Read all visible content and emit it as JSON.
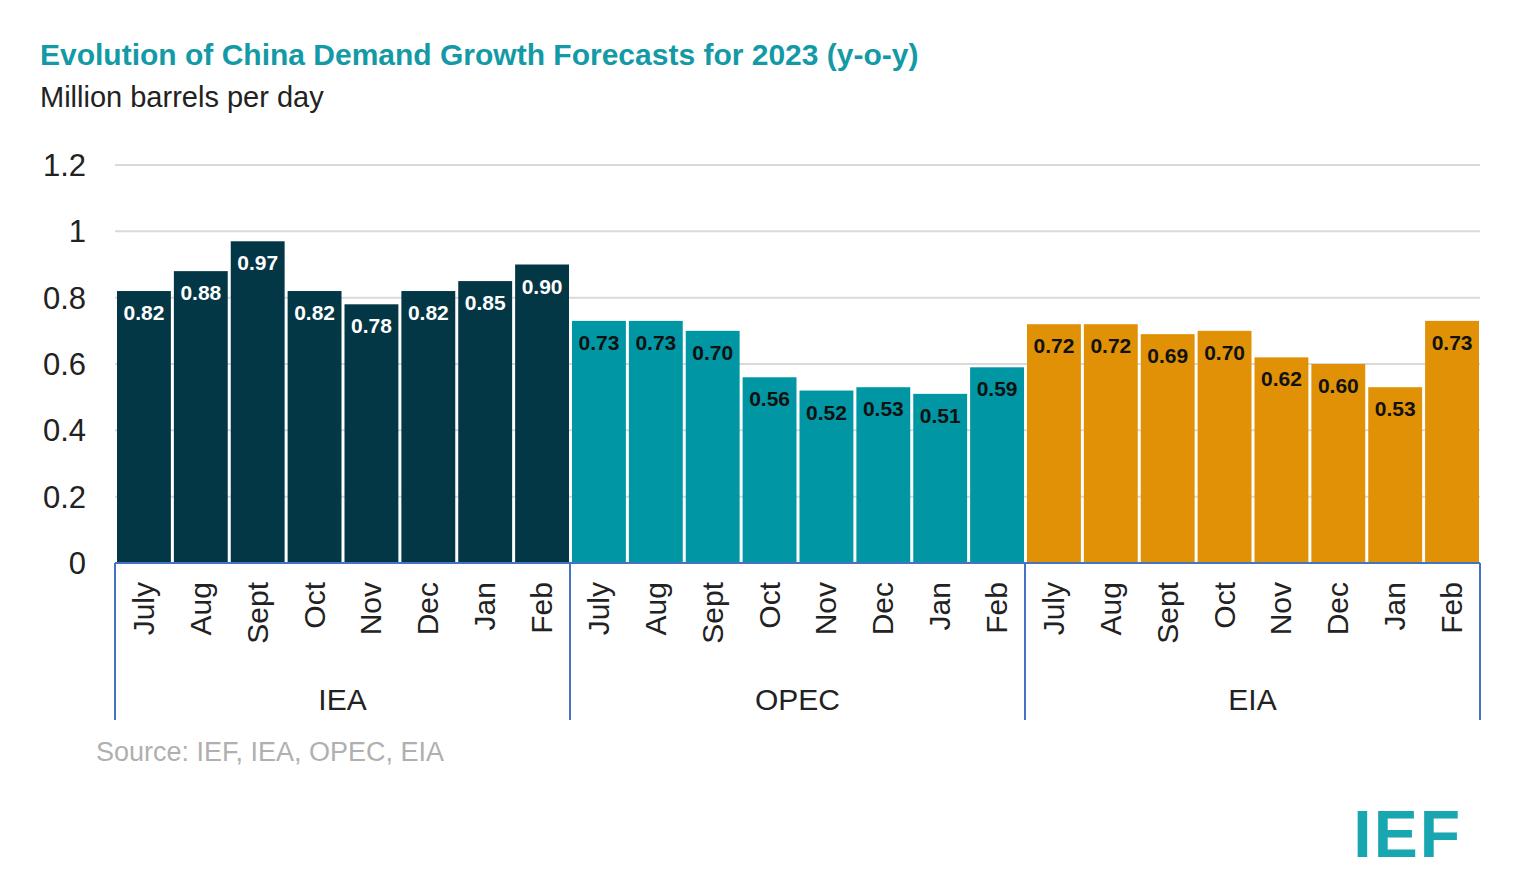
{
  "chart_data": {
    "type": "bar",
    "title": "Evolution of China Demand Growth Forecasts for 2023 (y-o-y)",
    "subtitle": "Million barrels per day",
    "source": "Source: IEF, IEA, OPEC, EIA",
    "logo": "IEF",
    "categories": [
      "July",
      "Aug",
      "Sept",
      "Oct",
      "Nov",
      "Dec",
      "Jan",
      "Feb"
    ],
    "series": [
      {
        "name": "IEA",
        "color": "#033745",
        "values": [
          0.82,
          0.88,
          0.97,
          0.82,
          0.78,
          0.82,
          0.85,
          0.9
        ],
        "value_labels": [
          "0.82",
          "0.88",
          "0.97",
          "0.82",
          "0.78",
          "0.82",
          "0.85",
          "0.90"
        ]
      },
      {
        "name": "OPEC",
        "color": "#0096a3",
        "values": [
          0.73,
          0.73,
          0.7,
          0.56,
          0.52,
          0.53,
          0.51,
          0.59
        ],
        "value_labels": [
          "0.73",
          "0.73",
          "0.70",
          "0.56",
          "0.52",
          "0.53",
          "0.51",
          "0.59"
        ]
      },
      {
        "name": "EIA",
        "color": "#e09106",
        "values": [
          0.72,
          0.72,
          0.69,
          0.7,
          0.62,
          0.6,
          0.53,
          0.73
        ],
        "value_labels": [
          "0.72",
          "0.72",
          "0.69",
          "0.70",
          "0.62",
          "0.60",
          "0.53",
          "0.73"
        ]
      }
    ],
    "ylim": [
      0,
      1.2
    ],
    "yticks": [
      0,
      0.2,
      0.4,
      0.6,
      0.8,
      1,
      1.2
    ],
    "grid": true,
    "data_labels": true
  }
}
